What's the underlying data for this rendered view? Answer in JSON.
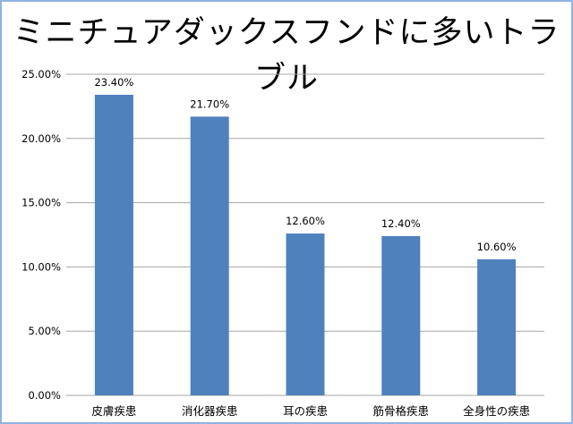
{
  "chart_data": {
    "type": "bar",
    "title": "ミニチュアダックスフンドに多いトラブル",
    "categories": [
      "皮膚疾患",
      "消化器疾患",
      "耳の疾患",
      "筋骨格疾患",
      "全身性の疾患"
    ],
    "values": [
      23.4,
      21.7,
      12.6,
      12.4,
      10.6
    ],
    "value_labels": [
      "23.40%",
      "21.70%",
      "12.60%",
      "12.40%",
      "10.60%"
    ],
    "yticks": [
      "0.00%",
      "5.00%",
      "10.00%",
      "15.00%",
      "20.00%",
      "25.00%"
    ],
    "ylim": [
      0,
      25
    ],
    "xlabel": "",
    "ylabel": "",
    "grid": true,
    "legend": "none",
    "colors": {
      "bar": "#4f81bd",
      "grid": "#a6a6a6",
      "border": "#8eb4e3"
    }
  }
}
